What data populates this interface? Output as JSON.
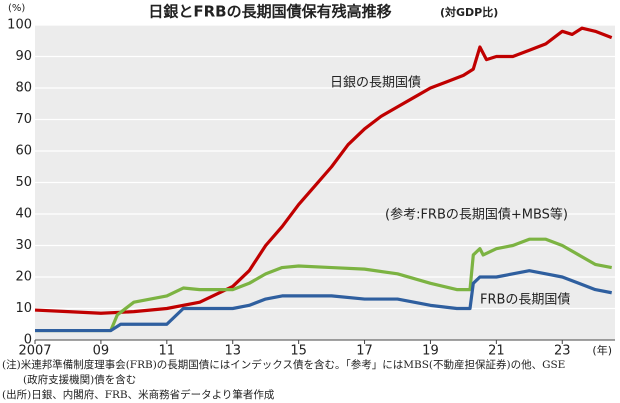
{
  "chart_data": {
    "type": "line",
    "title": "日銀とFRBの長期国債保有残高推移",
    "title_note": "(対GDP比)",
    "y_unit": "(%)",
    "x_unit": "(年)",
    "xlim": [
      2007,
      2024.6
    ],
    "ylim": [
      0,
      100
    ],
    "xticks": [
      2007,
      {
        "value": 2009,
        "label": "09"
      },
      {
        "value": 2011,
        "label": "11"
      },
      {
        "value": 2013,
        "label": "13"
      },
      {
        "value": 2015,
        "label": "15"
      },
      {
        "value": 2017,
        "label": "17"
      },
      {
        "value": 2019,
        "label": "19"
      },
      {
        "value": 2021,
        "label": "21"
      },
      {
        "value": 2023,
        "label": "23"
      }
    ],
    "yticks": [
      0,
      10,
      20,
      30,
      40,
      50,
      60,
      70,
      80,
      90,
      100
    ],
    "grid": true,
    "series": [
      {
        "name": "日銀の長期国債",
        "color": "#c00000",
        "x": [
          2007,
          2008,
          2009,
          2010,
          2011,
          2012,
          2013,
          2013.5,
          2014,
          2014.5,
          2015,
          2015.5,
          2016,
          2016.5,
          2017,
          2017.5,
          2018,
          2018.5,
          2019,
          2019.5,
          2020,
          2020.3,
          2020.5,
          2020.7,
          2021,
          2021.5,
          2022,
          2022.5,
          2023,
          2023.3,
          2023.6,
          2024,
          2024.5
        ],
        "values": [
          9.5,
          9,
          8.5,
          9,
          10,
          12,
          17,
          22,
          30,
          36,
          43,
          49,
          55,
          62,
          67,
          71,
          74,
          77,
          80,
          82,
          84,
          86,
          93,
          89,
          90,
          90,
          92,
          94,
          98,
          97,
          99,
          98,
          96
        ]
      },
      {
        "name": "(参考:FRBの長期国債+MBS等)",
        "color": "#7cb342",
        "x": [
          2007,
          2009.3,
          2009.5,
          2010,
          2010.5,
          2011,
          2011.5,
          2012,
          2013,
          2013.5,
          2014,
          2014.5,
          2015,
          2016,
          2017,
          2018,
          2019,
          2019.8,
          2020.2,
          2020.3,
          2020.5,
          2020.6,
          2021,
          2021.5,
          2022,
          2022.5,
          2023,
          2023.5,
          2024,
          2024.5
        ],
        "values": [
          3,
          3,
          8,
          12,
          13,
          14,
          16.5,
          16,
          16,
          18,
          21,
          23,
          23.5,
          23,
          22.5,
          21,
          18,
          16,
          16,
          27,
          29,
          27,
          29,
          30,
          32,
          32,
          30,
          27,
          24,
          23
        ]
      },
      {
        "name": "FRBの長期国債",
        "color": "#2f5f9f",
        "x": [
          2007,
          2009.3,
          2009.6,
          2011,
          2011.5,
          2013,
          2013.5,
          2014,
          2014.5,
          2016,
          2017,
          2018,
          2019,
          2019.8,
          2020.2,
          2020.3,
          2020.5,
          2021,
          2022,
          2022.5,
          2023,
          2023.5,
          2024,
          2024.5
        ],
        "values": [
          3,
          3,
          5,
          5,
          10,
          10,
          11,
          13,
          14,
          14,
          13,
          13,
          11,
          10,
          10,
          18,
          20,
          20,
          22,
          21,
          20,
          18,
          16,
          15
        ]
      }
    ],
    "notes": [
      "(注)米連邦準備制度理事会(FRB)の長期国債にはインデックス債を含む。「参考」にはMBS(不動産担保証券)の他、GSE",
      "　　(政府支援機関)債を含む",
      "(出所)日銀、内閣府、FRB、米商務省データより筆者作成"
    ]
  }
}
